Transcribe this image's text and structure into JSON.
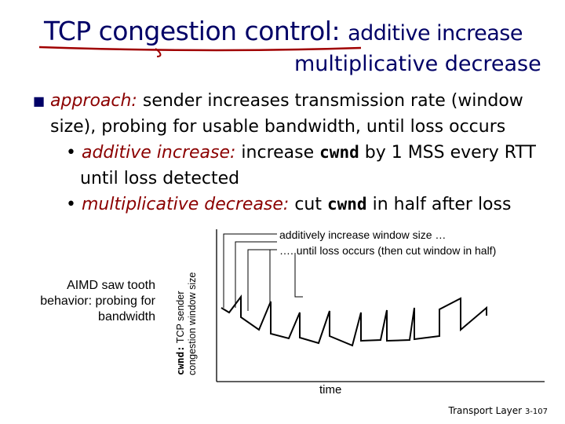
{
  "title": {
    "part1": "TCP congestion control:",
    "part2": "additive increase",
    "line2": "multiplicative decrease"
  },
  "bullets": {
    "approach_label": "approach:",
    "approach_text": "sender increases transmission rate (window size), probing for usable bandwidth, until loss occurs",
    "ai_label": "additive increase:",
    "ai_pre": "increase",
    "ai_code": "cwnd",
    "ai_post": "by 1 MSS every RTT until loss detected",
    "md_label": "multiplicative decrease:",
    "md_pre": "cut",
    "md_code": "cwnd",
    "md_post": "in half after loss"
  },
  "figure": {
    "caption": "AIMD saw tooth behavior: probing for bandwidth",
    "ylabel_code": "cwnd:",
    "ylabel_line1": "TCP sender",
    "ylabel_line2": "congestion window size",
    "annotation_line1": "additively increase window size …",
    "annotation_line2": "…. until loss occurs (then cut window in half)",
    "xlabel": "time"
  },
  "footer": {
    "text": "Transport Layer",
    "page": "3-107"
  },
  "colors": {
    "title": "#000066",
    "emphasis": "#8b0000",
    "underline": "#a00000"
  }
}
